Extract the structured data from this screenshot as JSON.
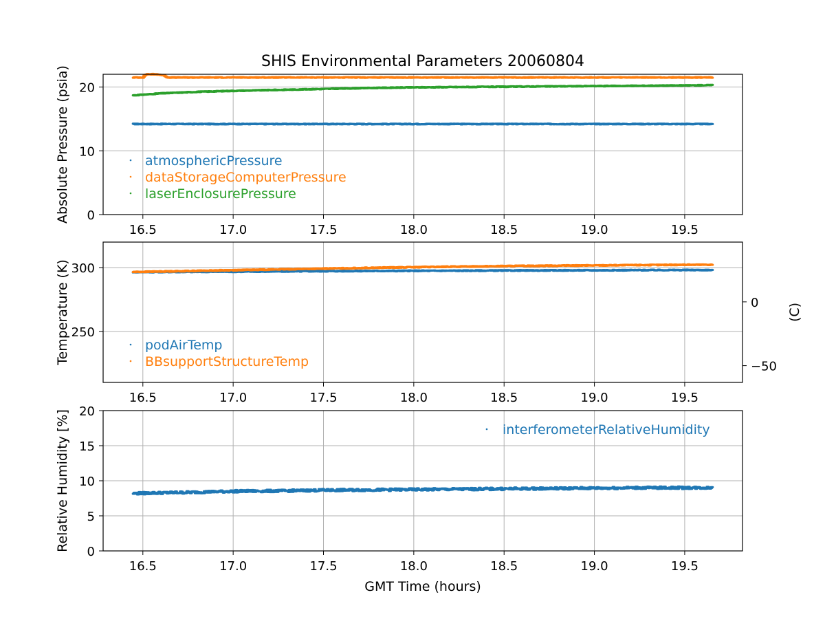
{
  "title": "SHIS Environmental Parameters 20060804",
  "chart_data": [
    {
      "type": "scatter",
      "id": "pressure",
      "ylabel": "Absolute Pressure (psia)",
      "xlim": [
        16.28,
        19.82
      ],
      "ylim": [
        0,
        22
      ],
      "xticks": [
        16.5,
        17.0,
        17.5,
        18.0,
        18.5,
        19.0,
        19.5
      ],
      "xtick_labels": [
        "16.5",
        "17.0",
        "17.5",
        "18.0",
        "18.5",
        "19.0",
        "19.5"
      ],
      "yticks": [
        0,
        10,
        20
      ],
      "ytick_labels": [
        "0",
        "10",
        "20"
      ],
      "grid": true,
      "legend": "lower-left",
      "series": [
        {
          "name": "atmosphericPressure",
          "color": "#1f77b4",
          "x": [
            16.45,
            17.0,
            17.5,
            18.0,
            18.5,
            19.0,
            19.65
          ],
          "y": [
            14.2,
            14.2,
            14.2,
            14.2,
            14.2,
            14.2,
            14.2
          ]
        },
        {
          "name": "dataStorageComputerPressure",
          "color": "#ff7f0e",
          "x": [
            16.45,
            16.5,
            16.52,
            16.58,
            16.62,
            16.64,
            17.0,
            17.5,
            18.0,
            18.5,
            19.0,
            19.65
          ],
          "y": [
            21.5,
            21.5,
            22.0,
            22.0,
            21.8,
            21.5,
            21.5,
            21.5,
            21.5,
            21.5,
            21.5,
            21.5
          ]
        },
        {
          "name": "laserEnclosurePressure",
          "color": "#2ca02c",
          "x": [
            16.45,
            16.6,
            16.8,
            17.0,
            17.25,
            17.5,
            17.75,
            18.0,
            18.25,
            18.5,
            18.75,
            19.0,
            19.25,
            19.5,
            19.65
          ],
          "y": [
            18.7,
            19.0,
            19.25,
            19.4,
            19.55,
            19.7,
            19.85,
            19.95,
            20.0,
            20.05,
            20.1,
            20.15,
            20.2,
            20.25,
            20.3
          ]
        }
      ]
    },
    {
      "type": "scatter",
      "id": "temperature",
      "ylabel": "Temperature (K)",
      "y2label": "(C)",
      "xlim": [
        16.28,
        19.82
      ],
      "ylim": [
        210,
        320
      ],
      "xticks": [
        16.5,
        17.0,
        17.5,
        18.0,
        18.5,
        19.0,
        19.5
      ],
      "xtick_labels": [
        "16.5",
        "17.0",
        "17.5",
        "18.0",
        "18.5",
        "19.0",
        "19.5"
      ],
      "yticks": [
        250,
        300
      ],
      "ytick_labels": [
        "250",
        "300"
      ],
      "y2ticks": [
        0,
        -50
      ],
      "y2tick_labels": [
        "0",
        "−50"
      ],
      "grid": true,
      "legend": "lower-left",
      "series": [
        {
          "name": "podAirTemp",
          "color": "#1f77b4",
          "x": [
            16.45,
            17.0,
            17.5,
            18.0,
            18.5,
            19.0,
            19.5,
            19.65
          ],
          "y": [
            296.5,
            296.8,
            297.2,
            297.5,
            297.7,
            297.9,
            298.1,
            298.1
          ]
        },
        {
          "name": "BBsupportStructureTemp",
          "color": "#ff7f0e",
          "x": [
            16.45,
            16.7,
            17.0,
            17.25,
            17.5,
            17.75,
            18.0,
            18.25,
            18.5,
            18.75,
            19.0,
            19.25,
            19.5,
            19.65
          ],
          "y": [
            296.6,
            297.2,
            298.0,
            298.6,
            299.2,
            299.8,
            300.3,
            300.8,
            301.2,
            301.5,
            301.7,
            302.0,
            302.2,
            302.3
          ]
        }
      ]
    },
    {
      "type": "scatter",
      "id": "humidity",
      "ylabel": "Relative Humidity [%]",
      "xlabel": "GMT Time (hours)",
      "xlim": [
        16.28,
        19.82
      ],
      "ylim": [
        0,
        20
      ],
      "xticks": [
        16.5,
        17.0,
        17.5,
        18.0,
        18.5,
        19.0,
        19.5
      ],
      "xtick_labels": [
        "16.5",
        "17.0",
        "17.5",
        "18.0",
        "18.5",
        "19.0",
        "19.5"
      ],
      "yticks": [
        0,
        5,
        10,
        15,
        20
      ],
      "ytick_labels": [
        "0",
        "5",
        "10",
        "15",
        "20"
      ],
      "grid": true,
      "legend": "upper-right",
      "series": [
        {
          "name": "interferometerRelativeHumidity",
          "color": "#1f77b4",
          "x": [
            16.45,
            16.75,
            17.0,
            17.25,
            17.5,
            17.75,
            18.0,
            18.25,
            18.5,
            18.75,
            19.0,
            19.25,
            19.5,
            19.65
          ],
          "y": [
            8.2,
            8.35,
            8.5,
            8.55,
            8.65,
            8.7,
            8.75,
            8.8,
            8.85,
            8.9,
            8.95,
            9.0,
            9.0,
            9.0
          ]
        }
      ]
    }
  ]
}
